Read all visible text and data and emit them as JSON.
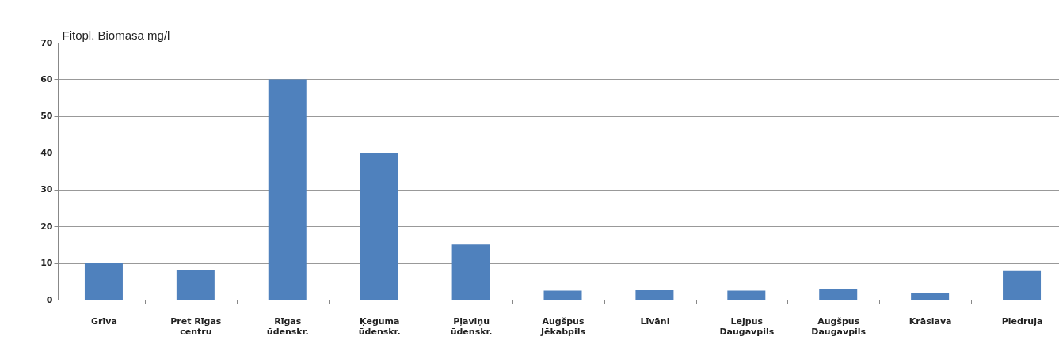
{
  "chart_data": {
    "type": "bar",
    "ylabel": "Fitopl. Biomasa mg/l",
    "categories": [
      "Grīva",
      "Pret Rīgas\ncentru",
      "Rīgas\nūdenskr.",
      "Ķeguma\nūdenskr.",
      "Pļaviņu\nūdenskr.",
      "Augšpus\nJēkabpils",
      "Līvāni",
      "Lejpus\nDaugavpils",
      "Augšpus\nDaugavpils",
      "Krāslava",
      "Piedruja"
    ],
    "values": [
      10,
      8,
      60,
      40,
      15,
      2.5,
      2.6,
      2.5,
      3,
      1.8,
      7.8
    ],
    "color": "#4f81bd",
    "ylim": [
      0,
      70
    ],
    "yticks": [
      0,
      10,
      20,
      30,
      40,
      50,
      60,
      70
    ],
    "grid": "y"
  }
}
